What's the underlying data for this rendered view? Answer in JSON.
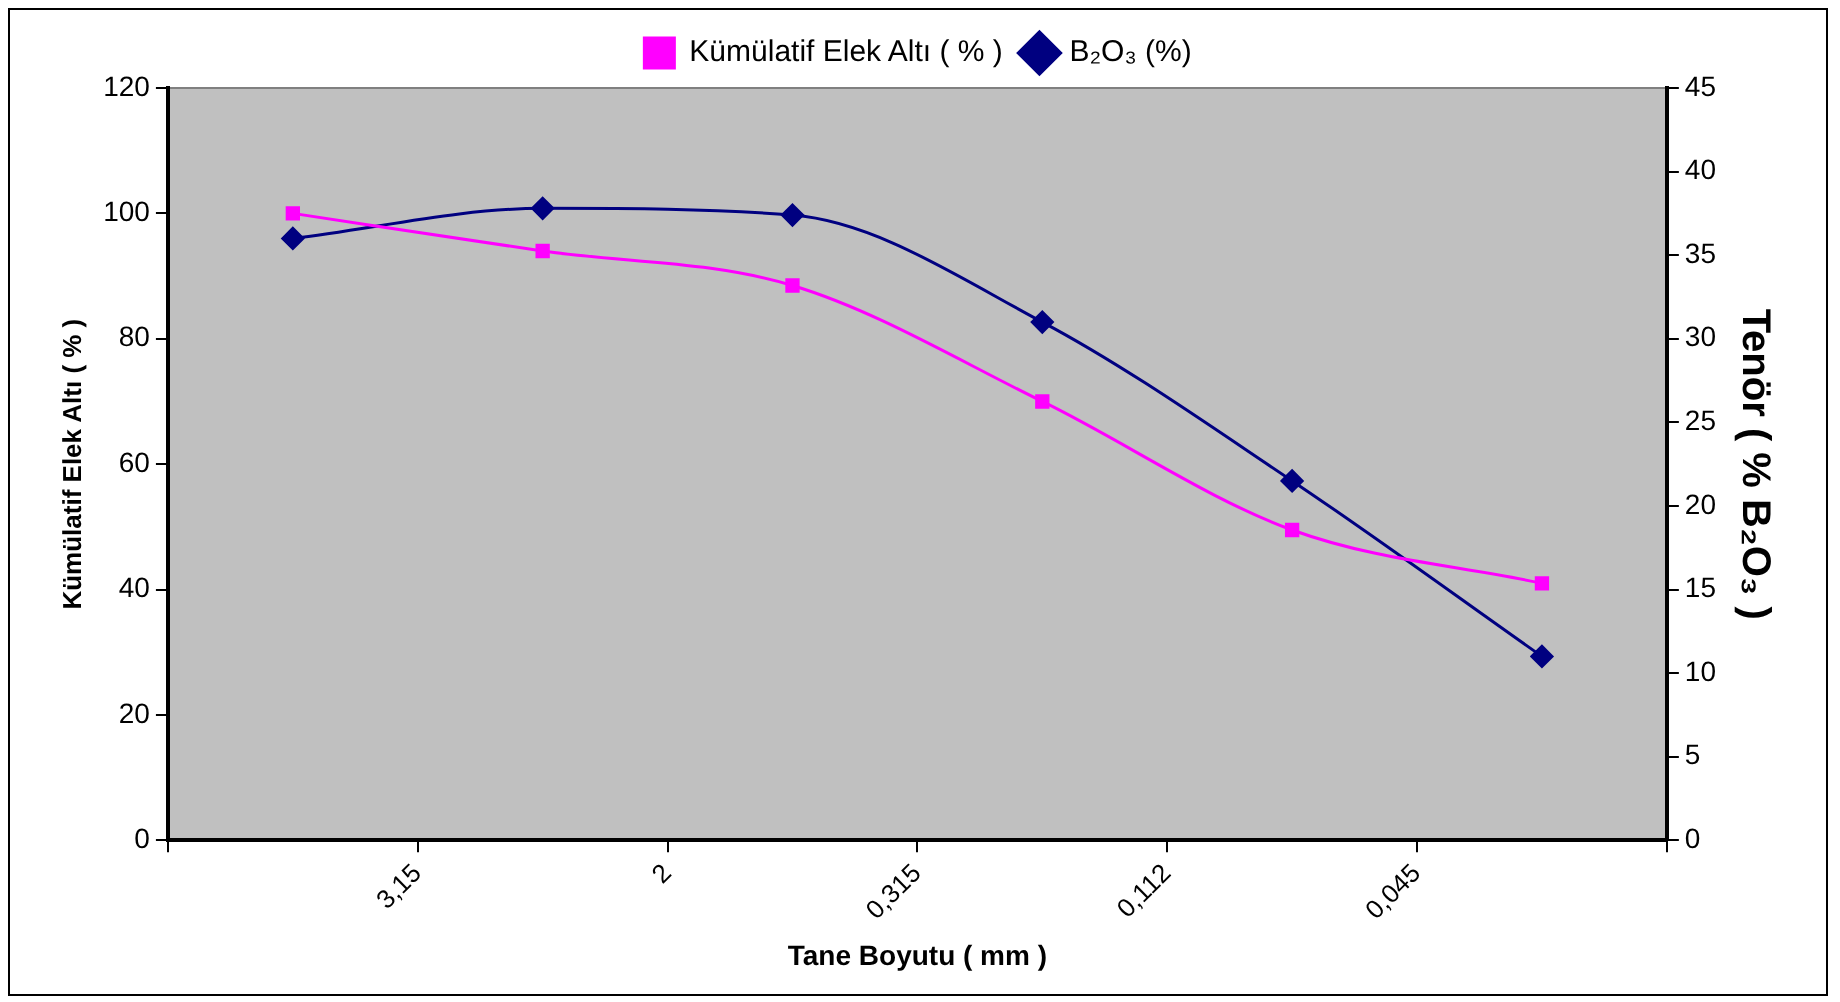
{
  "chart_data": {
    "type": "line",
    "xlabel": "Tane Boyutu ( mm )",
    "ylabel": "Kümülatif Elek Altı ( % )",
    "y2label": "Tenör ( % B₂O₃ )",
    "categories": [
      null,
      null,
      "3,15",
      null,
      "2",
      null,
      "0,315",
      null,
      "0,112",
      null,
      "0,045",
      null,
      null
    ],
    "ylim": [
      0,
      120
    ],
    "yticks": [
      0,
      20,
      40,
      60,
      80,
      100,
      120
    ],
    "y2lim": [
      0,
      45
    ],
    "y2ticks": [
      0,
      5,
      10,
      15,
      20,
      25,
      30,
      35,
      40,
      45
    ],
    "series": [
      {
        "name": "Kümülatif Elek Altı ( % )",
        "color": "#ff00ff",
        "marker": "square",
        "values": [
          null,
          100,
          null,
          94,
          null,
          88.5,
          null,
          70,
          null,
          49.5,
          null,
          41,
          null
        ]
      },
      {
        "name": "B₂O₃ (%)",
        "color": "#000080",
        "marker": "diamond",
        "axis": "y2",
        "values": [
          null,
          36,
          null,
          37.8,
          null,
          37.4,
          null,
          31,
          null,
          21.5,
          null,
          11,
          null
        ]
      }
    ],
    "grid": false,
    "legend": "top"
  }
}
